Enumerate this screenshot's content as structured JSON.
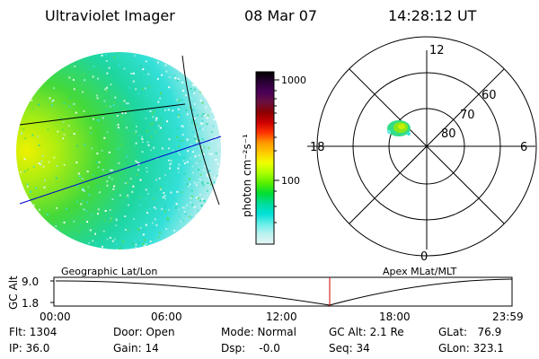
{
  "header": {
    "instrument": "Ultraviolet Imager",
    "date": "08 Mar 07",
    "time": "14:28:12 UT"
  },
  "colorbar": {
    "unit_label": "photon cm⁻²s⁻¹",
    "ticks": [
      "1000",
      "100"
    ],
    "ramp": [
      "#000000",
      "#2a0033",
      "#4a0058",
      "#6a1040",
      "#8b0000",
      "#cc0000",
      "#ff3300",
      "#ff9900",
      "#ffcc00",
      "#eeff00",
      "#aaff00",
      "#55ee00",
      "#00dd33",
      "#00dd99",
      "#00e0d8",
      "#66eee8",
      "#bbf2f0",
      "#e6f4f4"
    ]
  },
  "polar_plot": {
    "mlt_labels": {
      "top": "12",
      "left": "18",
      "right": "6",
      "bottom": "0"
    },
    "lat_labels": [
      "60",
      "70",
      "80"
    ]
  },
  "timeline": {
    "left_label": "Geographic Lat/Lon",
    "right_label": "Apex MLat/MLT",
    "y_axis_label": "GC Alt",
    "y_ticks": [
      "9.0",
      "1.8"
    ],
    "x_ticks": [
      "00:00",
      "06:00",
      "12:00",
      "18:00",
      "23:59"
    ]
  },
  "status": {
    "flt": "Flt: 1304",
    "ip": "IP: 36.0",
    "door": "Door: Open",
    "gain": "Gain: 14",
    "mode": "Mode: Normal",
    "dsp": "Dsp:    -0.0",
    "gc_alt": "GC Alt: 2.1 Re",
    "seq": "Seq: 34",
    "glat": "GLat:   76.9",
    "glon": "GLon: 323.1"
  },
  "colors": {
    "earth_mark": "#0000cc",
    "current_time_marker": "#cc0000",
    "line": "#000000"
  }
}
